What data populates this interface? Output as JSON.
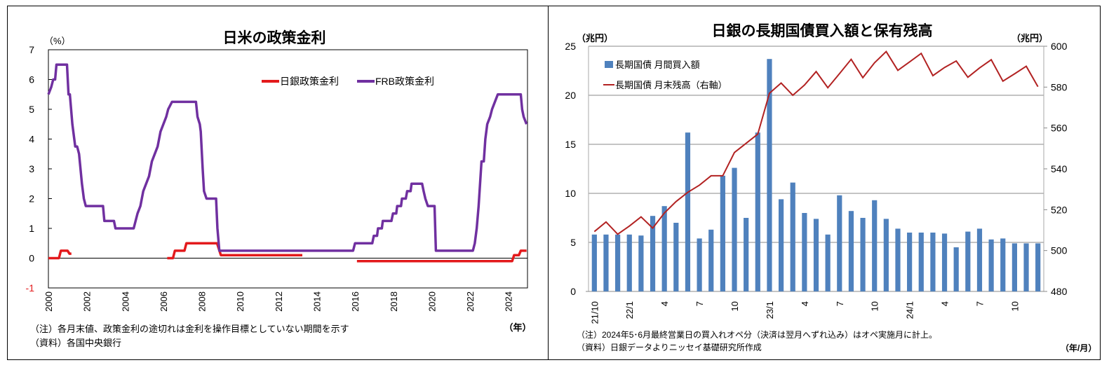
{
  "chart_data": [
    {
      "type": "line",
      "title": "日米の政策金利",
      "ylabel": "（%）",
      "xlabel": "（年）",
      "ylim": [
        -1,
        7
      ],
      "xlim": [
        2000,
        2025
      ],
      "yticks": [
        "-1",
        "0",
        "1",
        "2",
        "3",
        "4",
        "5",
        "6",
        "7"
      ],
      "xticks": [
        "2000",
        "2002",
        "2004",
        "2006",
        "2008",
        "2010",
        "2012",
        "2014",
        "2016",
        "2018",
        "2020",
        "2022",
        "2024"
      ],
      "legend_placement": "top-right",
      "note": "（注）各月末値、政策金利の途切れは金利を操作目標としていない期間を示す",
      "source": "（資料）各国中央銀行",
      "series": [
        {
          "name": "日銀政策金利",
          "color": "#e31a1c",
          "segments": [
            [
              [
                2000.0,
                0
              ],
              [
                2000.55,
                0
              ],
              [
                2000.65,
                0.25
              ],
              [
                2001.0,
                0.25
              ],
              [
                2001.1,
                0.15
              ],
              [
                2001.2,
                0.15
              ]
            ],
            [
              [
                2006.2,
                0
              ],
              [
                2006.5,
                0
              ],
              [
                2006.6,
                0.25
              ],
              [
                2007.1,
                0.25
              ],
              [
                2007.2,
                0.5
              ],
              [
                2008.8,
                0.5
              ],
              [
                2008.9,
                0.3
              ],
              [
                2009.0,
                0.1
              ],
              [
                2013.25,
                0.1
              ]
            ],
            [
              [
                2016.1,
                -0.1
              ],
              [
                2024.2,
                -0.1
              ],
              [
                2024.3,
                0.1
              ],
              [
                2024.55,
                0.1
              ],
              [
                2024.65,
                0.25
              ],
              [
                2024.95,
                0.25
              ]
            ]
          ]
        },
        {
          "name": "FRB政策金利",
          "color": "#7030a0",
          "segments": [
            [
              [
                2000.0,
                5.5
              ],
              [
                2000.15,
                5.75
              ],
              [
                2000.25,
                6.0
              ],
              [
                2000.35,
                6.0
              ],
              [
                2000.42,
                6.5
              ],
              [
                2000.97,
                6.5
              ],
              [
                2001.05,
                5.5
              ],
              [
                2001.12,
                5.5
              ],
              [
                2001.25,
                4.5
              ],
              [
                2001.4,
                3.75
              ],
              [
                2001.5,
                3.75
              ],
              [
                2001.6,
                3.5
              ],
              [
                2001.75,
                2.5
              ],
              [
                2001.85,
                2.0
              ],
              [
                2001.95,
                1.75
              ],
              [
                2002.85,
                1.75
              ],
              [
                2002.92,
                1.25
              ],
              [
                2003.42,
                1.25
              ],
              [
                2003.5,
                1.0
              ],
              [
                2004.45,
                1.0
              ],
              [
                2004.55,
                1.25
              ],
              [
                2004.65,
                1.5
              ],
              [
                2004.8,
                1.75
              ],
              [
                2004.95,
                2.25
              ],
              [
                2005.1,
                2.5
              ],
              [
                2005.25,
                2.75
              ],
              [
                2005.4,
                3.25
              ],
              [
                2005.55,
                3.5
              ],
              [
                2005.7,
                3.75
              ],
              [
                2005.85,
                4.25
              ],
              [
                2006.0,
                4.5
              ],
              [
                2006.15,
                4.75
              ],
              [
                2006.25,
                5.0
              ],
              [
                2006.45,
                5.25
              ],
              [
                2007.7,
                5.25
              ],
              [
                2007.78,
                4.75
              ],
              [
                2007.9,
                4.5
              ],
              [
                2007.95,
                4.25
              ],
              [
                2008.05,
                3.0
              ],
              [
                2008.12,
                2.25
              ],
              [
                2008.25,
                2.0
              ],
              [
                2008.75,
                2.0
              ],
              [
                2008.82,
                1.0
              ],
              [
                2008.92,
                0.25
              ],
              [
                2015.9,
                0.25
              ],
              [
                2016.0,
                0.5
              ],
              [
                2016.9,
                0.5
              ],
              [
                2016.98,
                0.75
              ],
              [
                2017.15,
                0.75
              ],
              [
                2017.2,
                1.0
              ],
              [
                2017.4,
                1.0
              ],
              [
                2017.45,
                1.25
              ],
              [
                2017.9,
                1.25
              ],
              [
                2017.98,
                1.5
              ],
              [
                2018.15,
                1.5
              ],
              [
                2018.2,
                1.75
              ],
              [
                2018.4,
                1.75
              ],
              [
                2018.45,
                2.0
              ],
              [
                2018.65,
                2.0
              ],
              [
                2018.72,
                2.25
              ],
              [
                2018.9,
                2.25
              ],
              [
                2018.95,
                2.5
              ],
              [
                2019.5,
                2.5
              ],
              [
                2019.58,
                2.25
              ],
              [
                2019.67,
                2.0
              ],
              [
                2019.8,
                1.75
              ],
              [
                2020.15,
                1.75
              ],
              [
                2020.22,
                0.25
              ],
              [
                2022.15,
                0.25
              ],
              [
                2022.25,
                0.5
              ],
              [
                2022.35,
                1.0
              ],
              [
                2022.45,
                1.75
              ],
              [
                2022.6,
                3.25
              ],
              [
                2022.72,
                3.25
              ],
              [
                2022.8,
                4.0
              ],
              [
                2022.9,
                4.5
              ],
              [
                2023.05,
                4.75
              ],
              [
                2023.15,
                5.0
              ],
              [
                2023.3,
                5.25
              ],
              [
                2023.45,
                5.5
              ],
              [
                2024.65,
                5.5
              ],
              [
                2024.72,
                5.0
              ],
              [
                2024.8,
                4.75
              ],
              [
                2024.95,
                4.5
              ]
            ]
          ]
        }
      ]
    },
    {
      "type": "bar+line",
      "title": "日銀の長期国債買入額と保有残高",
      "ylabel_left": "（兆円）",
      "ylabel_right": "（兆円）",
      "xlabel": "（年/月）",
      "ylim_left": [
        0,
        25
      ],
      "ylim_right": [
        480,
        600
      ],
      "yticks_left": [
        "0",
        "5",
        "10",
        "15",
        "20",
        "25"
      ],
      "yticks_right": [
        "480",
        "500",
        "520",
        "540",
        "560",
        "580",
        "600"
      ],
      "xtick_labels": [
        "21/10",
        "22/1",
        "4",
        "7",
        "10",
        "23/1",
        "4",
        "7",
        "10",
        "24/1",
        "4",
        "7",
        "10"
      ],
      "grid": true,
      "legend_placement": "top-left",
      "note": "（注）2024年5･6月最終営業日の買入れオペ分（決済は翌月へずれ込み）はオペ実施月に計上。",
      "source": "（資料）日銀データよりニッセイ基礎研究所作成",
      "categories": [
        "21/10",
        "21/11",
        "21/12",
        "22/1",
        "22/2",
        "22/3",
        "22/4",
        "22/5",
        "22/6",
        "22/7",
        "22/8",
        "22/9",
        "22/10",
        "22/11",
        "22/12",
        "23/1",
        "23/2",
        "23/3",
        "23/4",
        "23/5",
        "23/6",
        "23/7",
        "23/8",
        "23/9",
        "23/10",
        "23/11",
        "23/12",
        "24/1",
        "24/2",
        "24/3",
        "24/4",
        "24/5",
        "24/6",
        "24/7",
        "24/8",
        "24/9",
        "24/10",
        "24/11",
        "24/12"
      ],
      "series": [
        {
          "name": "長期国債  月間買入額",
          "axis": "left",
          "type": "bar",
          "color": "#4f81bd",
          "values": [
            5.8,
            5.8,
            5.8,
            5.8,
            5.7,
            7.7,
            8.7,
            7.0,
            16.2,
            5.4,
            6.3,
            11.8,
            12.6,
            7.5,
            16.2,
            23.7,
            9.4,
            11.1,
            8.0,
            7.4,
            5.8,
            9.8,
            8.2,
            7.5,
            9.3,
            7.4,
            6.4,
            6.0,
            6.0,
            6.0,
            5.9,
            4.5,
            6.1,
            6.4,
            5.3,
            5.4,
            4.9,
            4.9,
            4.9
          ]
        },
        {
          "name": "長期国債  月末残高（右軸）",
          "axis": "right",
          "type": "line",
          "color": "#b22222",
          "values": [
            509.3,
            514.0,
            508.0,
            512.0,
            516.5,
            511.0,
            518.4,
            524.0,
            528.5,
            532.0,
            536.6,
            536.6,
            548.0,
            552.5,
            557.0,
            577.0,
            582.0,
            576.0,
            581.0,
            587.6,
            579.7,
            586.6,
            593.6,
            584.6,
            591.9,
            597.4,
            588.2,
            592.3,
            596.5,
            585.6,
            589.6,
            592.8,
            584.8,
            589.4,
            593.4,
            582.9,
            586.5,
            590.2,
            580.2
          ]
        }
      ]
    }
  ]
}
